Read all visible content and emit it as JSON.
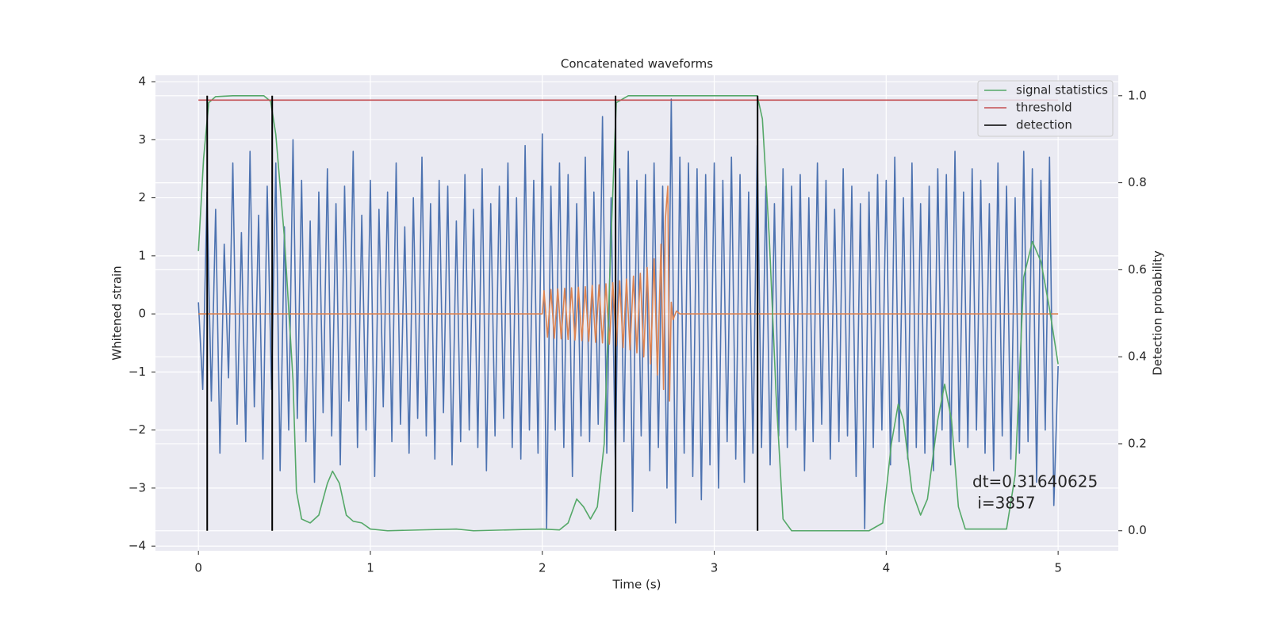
{
  "chart_data": {
    "type": "line",
    "title": "Concatenated waveforms",
    "xlabel": "Time (s)",
    "ylabel": "Whitened strain",
    "y2label": "Detection probability",
    "xlim": [
      -0.25,
      5.35
    ],
    "xticks": [
      0,
      1,
      2,
      3,
      4,
      5
    ],
    "ylim": [
      -4.08,
      4.11
    ],
    "yticks": [
      {
        "value": -4,
        "label": "−4"
      },
      {
        "value": -3,
        "label": "−3"
      },
      {
        "value": -2,
        "label": "−2"
      },
      {
        "value": -1,
        "label": "−1"
      },
      0,
      1,
      2,
      3,
      4
    ],
    "y2lim": [
      -0.046,
      1.047
    ],
    "y2ticks": [
      {
        "value": 0,
        "label": "0.0"
      },
      {
        "value": 0.2,
        "label": "0.2"
      },
      {
        "value": 0.4,
        "label": "0.4"
      },
      {
        "value": 0.6,
        "label": "0.6"
      },
      {
        "value": 0.8,
        "label": "0.8"
      },
      {
        "value": 1,
        "label": "1.0"
      }
    ],
    "grid": true,
    "legend": "upper right",
    "annotation": [
      "dt=0.31640625",
      " i=3857"
    ],
    "series": [
      {
        "color": "#4c72b0",
        "x": [
          0,
          0.025,
          0.05,
          0.075,
          0.1,
          0.125,
          0.15,
          0.175,
          0.2,
          0.225,
          0.25,
          0.275,
          0.3,
          0.325,
          0.35,
          0.375,
          0.4,
          0.425,
          0.45,
          0.475,
          0.5,
          0.525,
          0.55,
          0.575,
          0.6,
          0.625,
          0.65,
          0.675,
          0.7,
          0.725,
          0.75,
          0.775,
          0.8,
          0.825,
          0.85,
          0.875,
          0.9,
          0.925,
          0.95,
          0.975,
          1,
          1.025,
          1.05,
          1.075,
          1.1,
          1.125,
          1.15,
          1.175,
          1.2,
          1.225,
          1.25,
          1.275,
          1.3,
          1.325,
          1.35,
          1.375,
          1.4,
          1.425,
          1.45,
          1.475,
          1.5,
          1.525,
          1.55,
          1.575,
          1.6,
          1.625,
          1.65,
          1.675,
          1.7,
          1.725,
          1.75,
          1.775,
          1.8,
          1.825,
          1.85,
          1.875,
          1.9,
          1.925,
          1.95,
          1.975,
          2,
          2.025,
          2.05,
          2.075,
          2.1,
          2.125,
          2.15,
          2.175,
          2.2,
          2.225,
          2.25,
          2.275,
          2.3,
          2.325,
          2.35,
          2.375,
          2.4,
          2.425,
          2.45,
          2.475,
          2.5,
          2.525,
          2.55,
          2.575,
          2.6,
          2.625,
          2.65,
          2.675,
          2.7,
          2.725,
          2.75,
          2.775,
          2.8,
          2.825,
          2.85,
          2.875,
          2.9,
          2.925,
          2.95,
          2.975,
          3,
          3.025,
          3.05,
          3.075,
          3.1,
          3.125,
          3.15,
          3.175,
          3.2,
          3.225,
          3.25,
          3.275,
          3.3,
          3.325,
          3.35,
          3.375,
          3.4,
          3.425,
          3.45,
          3.475,
          3.5,
          3.525,
          3.55,
          3.575,
          3.6,
          3.625,
          3.65,
          3.675,
          3.7,
          3.725,
          3.75,
          3.775,
          3.8,
          3.825,
          3.85,
          3.875,
          3.9,
          3.925,
          3.95,
          3.975,
          4,
          4.025,
          4.05,
          4.075,
          4.1,
          4.125,
          4.15,
          4.175,
          4.2,
          4.225,
          4.25,
          4.275,
          4.3,
          4.325,
          4.35,
          4.375,
          4.4,
          4.425,
          4.45,
          4.475,
          4.5,
          4.525,
          4.55,
          4.575,
          4.6,
          4.625,
          4.65,
          4.675,
          4.7,
          4.725,
          4.75,
          4.775,
          4.8,
          4.825,
          4.85,
          4.875,
          4.9,
          4.925,
          4.95,
          4.975,
          5
        ],
        "values": [
          0.2,
          -1.3,
          2.1,
          -1.5,
          1.8,
          -2.4,
          1.2,
          -1.1,
          2.6,
          -1.9,
          1.4,
          -2.2,
          2.8,
          -1.6,
          1.7,
          -2.5,
          2.2,
          -1.3,
          2.6,
          -2.7,
          1.5,
          -2.0,
          3.0,
          -1.8,
          2.3,
          -2.2,
          1.6,
          -2.9,
          2.1,
          -1.7,
          2.5,
          -2.1,
          1.9,
          -2.6,
          2.2,
          -1.5,
          2.8,
          -2.3,
          1.7,
          -2.0,
          2.3,
          -2.8,
          1.8,
          -1.6,
          2.1,
          -2.2,
          2.6,
          -1.9,
          1.5,
          -2.4,
          2.0,
          -1.8,
          2.7,
          -2.1,
          1.9,
          -2.5,
          2.3,
          -1.7,
          2.2,
          -2.6,
          1.6,
          -2.2,
          2.4,
          -2.0,
          1.8,
          -2.3,
          2.5,
          -2.7,
          1.9,
          -2.1,
          2.2,
          -1.8,
          2.6,
          -2.3,
          2.0,
          -2.5,
          2.9,
          -2.0,
          2.3,
          -2.4,
          3.1,
          -3.7,
          2.2,
          -2.0,
          2.6,
          -2.3,
          2.4,
          -2.8,
          1.9,
          -2.1,
          2.7,
          -2.2,
          2.1,
          -1.9,
          3.4,
          -2.4,
          2.0,
          -2.6,
          2.5,
          -2.2,
          2.8,
          -3.4,
          2.3,
          -2.1,
          2.4,
          -2.7,
          2.6,
          -2.3,
          2.2,
          -3.0,
          3.7,
          -3.6,
          2.7,
          -2.4,
          2.6,
          -2.8,
          2.5,
          -3.2,
          2.4,
          -2.6,
          2.6,
          -3.0,
          2.3,
          -2.2,
          2.7,
          -2.5,
          2.4,
          -2.9,
          2.1,
          -2.4,
          2.9,
          -2.3,
          2.2,
          -2.6,
          1.9,
          -2.1,
          2.5,
          -2.3,
          2.2,
          -2.0,
          2.4,
          -2.7,
          2.0,
          -2.2,
          2.6,
          -1.9,
          2.3,
          -2.5,
          1.8,
          -2.2,
          2.5,
          -2.1,
          2.2,
          -2.8,
          1.9,
          -3.7,
          2.1,
          -2.3,
          2.4,
          -2.0,
          2.3,
          -2.6,
          2.7,
          -2.2,
          2.0,
          -2.5,
          2.6,
          -2.3,
          1.9,
          -2.4,
          2.2,
          -2.7,
          2.5,
          -2.0,
          2.4,
          -2.6,
          2.8,
          -2.2,
          2.1,
          -2.3,
          2.5,
          -2.0,
          2.3,
          -2.4,
          1.9,
          -2.7,
          2.6,
          -2.1,
          2.2,
          -2.5,
          2.0,
          -2.4,
          2.8,
          -2.2,
          2.5,
          -2.9,
          2.3,
          -2.0,
          2.7,
          -3.3,
          -0.9
        ]
      },
      {
        "color": "#dd8452",
        "x": [
          0,
          2.0,
          2.01,
          2.03,
          2.05,
          2.07,
          2.09,
          2.11,
          2.13,
          2.15,
          2.17,
          2.19,
          2.21,
          2.23,
          2.25,
          2.27,
          2.29,
          2.31,
          2.33,
          2.35,
          2.37,
          2.39,
          2.41,
          2.43,
          2.45,
          2.47,
          2.49,
          2.51,
          2.53,
          2.55,
          2.57,
          2.59,
          2.61,
          2.63,
          2.65,
          2.67,
          2.69,
          2.705,
          2.715,
          2.73,
          2.74,
          2.75,
          2.76,
          2.78,
          2.8,
          5
        ],
        "values": [
          0,
          0,
          0.4,
          -0.4,
          0.42,
          -0.42,
          0.43,
          -0.43,
          0.44,
          -0.44,
          0.45,
          -0.45,
          0.46,
          -0.46,
          0.47,
          -0.47,
          0.49,
          -0.49,
          0.5,
          -0.5,
          0.52,
          -0.52,
          0.54,
          -0.55,
          0.57,
          -0.58,
          0.6,
          -0.62,
          0.65,
          -0.67,
          0.7,
          -0.74,
          0.8,
          -0.86,
          0.95,
          -1.05,
          1.2,
          -1.3,
          1.6,
          2.2,
          -1.5,
          0.2,
          -0.1,
          0.05,
          0,
          0
        ]
      },
      {
        "name": "signal statistics",
        "color": "#55a868",
        "axis": "y2",
        "x": [
          0,
          0.03,
          0.06,
          0.1,
          0.2,
          0.38,
          0.42,
          0.45,
          0.5,
          0.55,
          0.57,
          0.6,
          0.65,
          0.7,
          0.75,
          0.78,
          0.82,
          0.86,
          0.9,
          0.95,
          1.0,
          1.1,
          1.5,
          1.6,
          2.0,
          2.1,
          2.15,
          2.2,
          2.24,
          2.28,
          2.32,
          2.36,
          2.4,
          2.43,
          2.5,
          3.25,
          3.28,
          3.32,
          3.36,
          3.4,
          3.45,
          3.9,
          3.98,
          4.03,
          4.07,
          4.1,
          4.15,
          4.2,
          4.24,
          4.3,
          4.34,
          4.38,
          4.42,
          4.46,
          4.7,
          4.75,
          4.8,
          4.85,
          4.9,
          4.95,
          5.0
        ],
        "values": [
          0.643,
          0.856,
          0.984,
          0.998,
          1,
          1,
          0.987,
          0.911,
          0.674,
          0.346,
          0.091,
          0.027,
          0.018,
          0.036,
          0.109,
          0.137,
          0.109,
          0.036,
          0.022,
          0.018,
          0.004,
          0,
          0.004,
          0,
          0.004,
          0.002,
          0.018,
          0.073,
          0.055,
          0.027,
          0.055,
          0.2,
          0.674,
          0.984,
          1,
          1,
          0.947,
          0.674,
          0.31,
          0.027,
          0,
          0,
          0.018,
          0.2,
          0.291,
          0.255,
          0.091,
          0.036,
          0.073,
          0.255,
          0.337,
          0.255,
          0.055,
          0.004,
          0.004,
          0.128,
          0.583,
          0.665,
          0.619,
          0.51,
          0.383
        ]
      },
      {
        "name": "threshold",
        "color": "#c44e52",
        "axis": "y2",
        "x": [
          0,
          5
        ],
        "values": [
          0.99,
          0.99
        ]
      },
      {
        "name": "detection",
        "color": "#000000",
        "axis": "y2",
        "x": [
          0.051,
          0.429,
          2.426,
          3.252
        ],
        "values": [
          1,
          1,
          1,
          1
        ]
      }
    ]
  }
}
